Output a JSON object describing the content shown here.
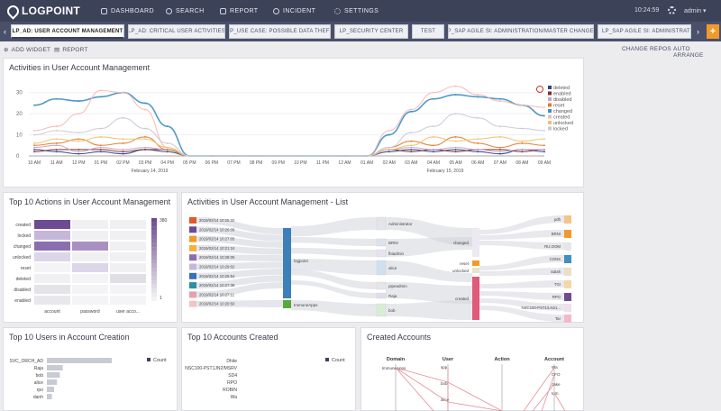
{
  "nav": {
    "logo": "LOGPOINT",
    "items": [
      {
        "label": "DASHBOARD",
        "icon": "dashboard-icon"
      },
      {
        "label": "SEARCH",
        "icon": "search-icon"
      },
      {
        "label": "REPORT",
        "icon": "report-icon"
      },
      {
        "label": "INCIDENT",
        "icon": "incident-icon"
      },
      {
        "label": "SETTINGS",
        "icon": "settings-icon"
      }
    ],
    "time": "10:24:59",
    "user": "admin"
  },
  "tabs": [
    "LP_AD: USER ACCOUNT MANAGEMENT",
    "LP_AD: CRITICAL USER ACTIVITIES",
    "LP_USE CASE: POSSIBLE DATA THEFT",
    "LP_SECURITY CENTER",
    "TEST",
    "LP_SAP AGILE SI: ADMINISTRATION/MASTER CHANGES",
    "LP_SAP AGILE SI: ADMINISTRATOR"
  ],
  "toolbar": {
    "add_widget": "ADD WIDGET",
    "report": "REPORT",
    "change_repos": "CHANGE REPOS",
    "auto_arrange": "AUTO ARRANGE"
  },
  "colors": {
    "nav_bg": "#3c4258",
    "accent": "#f19a2a",
    "purple": "#6d4b92"
  },
  "widgets": {
    "activities": {
      "title": "Activities in User Account Management",
      "legend": [
        "deleted",
        "enabled",
        "disabled",
        "reset",
        "changed",
        "created",
        "unlocked",
        "locked"
      ],
      "legend_colors": [
        "#2f3f8f",
        "#7b2f2f",
        "#c9a2c4",
        "#e07b2b",
        "#3d8fc4",
        "#f4b8b8",
        "#f2c06a",
        "#c9c9d6"
      ]
    },
    "top_actions": {
      "title": "Top 10 Actions in User Account Management",
      "rows": [
        "created",
        "locked",
        "changed",
        "unlocked",
        "reset",
        "deleted",
        "disabled",
        "enabled"
      ],
      "cols": [
        "account",
        "password",
        "user acco..."
      ],
      "scale_max": "380",
      "scale_min": "1"
    },
    "activities_list": {
      "title": "Activities in User Account Management - List",
      "times": [
        "2019/02/14 10:25:32",
        "2019/02/14 10:26:08",
        "2019/02/14 10:27:05",
        "2019/02/14 10:21:24",
        "2019/02/14 10:28:05",
        "2019/02/14 10:29:02",
        "2019/02/14 10:25:54",
        "2019/02/14 10:27:38",
        "2019/02/14 10:27:11",
        "2019/02/14 10:20:50"
      ],
      "time_colors": [
        "#e05a2b",
        "#6d4b92",
        "#f19a2a",
        "#f4b23a",
        "#8a6fb0",
        "#c4b7d9",
        "#3a6fb5",
        "#2e8fa0",
        "#e8a0a8",
        "#f4c4c4"
      ],
      "domains": [
        "logpoint",
        "ImmuneApps"
      ],
      "users": [
        "Administrator",
        "BRNI",
        "fbiadmin",
        "alice",
        "pipeadmin",
        "Raja",
        "bob"
      ],
      "actions": [
        "changed",
        "reset",
        "unlocked",
        "created"
      ],
      "accounts": [
        "pdh",
        "BRNI",
        "RIJ.OOM",
        "CONS",
        "Salah",
        "TGI",
        "RPO",
        "NSC100-PST1/LN21...",
        "Tar"
      ]
    },
    "top_users": {
      "title": "Top 10 Users in Account Creation",
      "legend": "Count",
      "labels": [
        "SVC_ORCH_AD",
        "Raja",
        "bob",
        "alice",
        "rpo",
        "danh"
      ],
      "values": [
        90,
        22,
        18,
        14,
        10,
        7
      ]
    },
    "top_accounts": {
      "title": "Top 10 Accounts Created",
      "legend": "Count",
      "labels": [
        "Dhite",
        "NSC100-PST1JN2/MSRV",
        "SD4",
        "RPO",
        "ROBIN",
        "Wa"
      ]
    },
    "created_accounts": {
      "title": "Created Accounts",
      "axes": [
        "Domain",
        "User",
        "Action",
        "Account"
      ],
      "domain_values": [
        "ImmuneApps"
      ],
      "user_values": [
        "spp",
        "bob",
        "alice"
      ],
      "account_values": [
        "Wa",
        "CFO",
        "Jake",
        "tom"
      ]
    }
  },
  "chart_data": {
    "type": "line",
    "title": "Activities in User Account Management",
    "x": [
      "10 AM",
      "11 AM",
      "12 PM",
      "01 PM",
      "02 PM",
      "03 PM",
      "04 PM",
      "05 PM",
      "06 PM",
      "07 PM",
      "08 PM",
      "09 PM",
      "10 PM",
      "11 PM",
      "12 AM",
      "01 AM",
      "02 AM",
      "03 AM",
      "04 AM",
      "05 AM",
      "06 AM",
      "07 AM",
      "08 AM",
      "09 AM"
    ],
    "date_labels": [
      "February 14, 2019",
      "February 15, 2019"
    ],
    "ylim": [
      0,
      35
    ],
    "yticks": [
      0,
      10,
      20,
      30
    ],
    "series": [
      {
        "name": "deleted",
        "values": [
          3,
          2,
          1,
          2,
          1,
          3,
          2,
          0,
          0,
          0,
          0,
          0,
          0,
          0,
          0,
          0,
          2,
          3,
          2,
          3,
          2,
          1,
          3,
          2
        ]
      },
      {
        "name": "enabled",
        "values": [
          2,
          3,
          3,
          3,
          2,
          3,
          3,
          0,
          0,
          0,
          0,
          0,
          0,
          0,
          0,
          0,
          3,
          2,
          3,
          2,
          3,
          3,
          2,
          3
        ]
      },
      {
        "name": "disabled",
        "values": [
          4,
          5,
          2,
          4,
          3,
          4,
          3,
          0,
          0,
          0,
          0,
          0,
          0,
          0,
          0,
          0,
          3,
          4,
          3,
          4,
          3,
          2,
          3,
          3
        ]
      },
      {
        "name": "reset",
        "values": [
          5,
          6,
          8,
          5,
          6,
          9,
          3,
          0,
          0,
          0,
          0,
          0,
          0,
          0,
          0,
          0,
          4,
          7,
          5,
          9,
          6,
          4,
          6,
          5
        ]
      },
      {
        "name": "changed",
        "values": [
          24,
          27,
          26,
          28,
          30,
          25,
          14,
          0,
          0,
          0,
          0,
          0,
          0,
          0,
          0,
          0,
          10,
          21,
          27,
          29,
          28,
          27,
          24,
          19
        ]
      },
      {
        "name": "created",
        "values": [
          12,
          14,
          20,
          31,
          30,
          22,
          4,
          0,
          0,
          0,
          0,
          0,
          0,
          0,
          0,
          0,
          12,
          22,
          30,
          33,
          29,
          26,
          24,
          23
        ]
      },
      {
        "name": "unlocked",
        "values": [
          6,
          8,
          7,
          9,
          8,
          8,
          4,
          0,
          0,
          0,
          0,
          0,
          0,
          0,
          0,
          0,
          3,
          5,
          9,
          7,
          8,
          9,
          7,
          8
        ]
      },
      {
        "name": "locked",
        "values": [
          10,
          12,
          11,
          13,
          18,
          13,
          6,
          0,
          0,
          0,
          0,
          0,
          0,
          0,
          0,
          0,
          4,
          11,
          14,
          20,
          18,
          14,
          13,
          12
        ]
      }
    ]
  }
}
